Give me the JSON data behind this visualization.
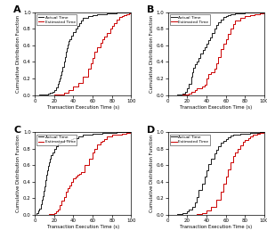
{
  "panels": [
    "A",
    "B",
    "C",
    "D"
  ],
  "xlabel": "Transaction Execution Time (s)",
  "ylabel": "Cumulative Distribution Function",
  "xlim": [
    0,
    100
  ],
  "ylim": [
    0,
    1.0
  ],
  "xticks": [
    0,
    20,
    40,
    60,
    80,
    100
  ],
  "yticks": [
    0.0,
    0.2,
    0.4,
    0.6,
    0.8,
    1.0
  ],
  "legend_labels": [
    "Actual Time",
    "Estimated Time"
  ],
  "actual_color": "#1a1a1a",
  "estimated_color": "#cc0000",
  "A_actual_x": [
    0,
    5,
    10,
    14,
    16,
    18,
    20,
    22,
    24,
    25,
    26,
    27,
    28,
    29,
    30,
    31,
    32,
    33,
    34,
    35,
    36,
    38,
    40,
    42,
    44,
    46,
    48,
    50,
    55,
    60,
    65,
    70,
    75,
    80,
    85,
    90,
    95,
    100
  ],
  "A_actual_y": [
    0,
    0.005,
    0.01,
    0.02,
    0.03,
    0.04,
    0.06,
    0.09,
    0.14,
    0.17,
    0.2,
    0.24,
    0.29,
    0.34,
    0.4,
    0.46,
    0.52,
    0.57,
    0.61,
    0.65,
    0.68,
    0.72,
    0.76,
    0.8,
    0.84,
    0.87,
    0.9,
    0.93,
    0.96,
    0.97,
    0.975,
    0.98,
    0.985,
    0.99,
    0.995,
    0.998,
    1.0,
    1.0
  ],
  "A_estimated_x": [
    0,
    20,
    25,
    30,
    35,
    40,
    45,
    50,
    55,
    58,
    60,
    62,
    65,
    68,
    70,
    72,
    75,
    78,
    80,
    82,
    85,
    88,
    90,
    92,
    95,
    98,
    100
  ],
  "A_estimated_y": [
    0,
    0.005,
    0.01,
    0.03,
    0.06,
    0.1,
    0.15,
    0.22,
    0.32,
    0.38,
    0.45,
    0.52,
    0.58,
    0.63,
    0.67,
    0.71,
    0.75,
    0.8,
    0.84,
    0.87,
    0.91,
    0.94,
    0.96,
    0.97,
    0.98,
    0.99,
    1.0
  ],
  "B_actual_x": [
    0,
    10,
    15,
    18,
    20,
    22,
    24,
    25,
    26,
    28,
    30,
    32,
    34,
    36,
    38,
    40,
    42,
    44,
    46,
    48,
    50,
    52,
    55,
    58,
    60,
    62,
    65,
    68,
    70,
    75,
    80,
    85,
    90,
    95,
    100
  ],
  "B_actual_y": [
    0,
    0.01,
    0.02,
    0.04,
    0.08,
    0.14,
    0.22,
    0.28,
    0.33,
    0.37,
    0.4,
    0.45,
    0.5,
    0.54,
    0.58,
    0.62,
    0.66,
    0.7,
    0.75,
    0.8,
    0.85,
    0.88,
    0.91,
    0.94,
    0.96,
    0.97,
    0.975,
    0.98,
    0.985,
    0.99,
    0.993,
    0.995,
    0.998,
    1.0,
    1.0
  ],
  "B_estimated_x": [
    0,
    15,
    20,
    22,
    24,
    28,
    30,
    35,
    38,
    40,
    42,
    45,
    48,
    50,
    52,
    55,
    58,
    60,
    62,
    65,
    68,
    70,
    75,
    80,
    85,
    90,
    95,
    100
  ],
  "B_estimated_y": [
    0,
    0.005,
    0.01,
    0.02,
    0.04,
    0.06,
    0.08,
    0.1,
    0.12,
    0.2,
    0.25,
    0.28,
    0.32,
    0.38,
    0.46,
    0.56,
    0.62,
    0.68,
    0.74,
    0.8,
    0.86,
    0.9,
    0.93,
    0.95,
    0.97,
    0.98,
    0.99,
    1.0
  ],
  "C_actual_x": [
    0,
    2,
    4,
    5,
    6,
    7,
    8,
    9,
    10,
    11,
    12,
    13,
    14,
    15,
    16,
    17,
    18,
    20,
    22,
    24,
    26,
    28,
    30,
    32,
    35,
    38,
    40,
    45,
    50,
    55,
    60,
    65,
    70,
    75,
    80,
    85,
    90,
    100
  ],
  "C_actual_y": [
    0,
    0.02,
    0.05,
    0.08,
    0.13,
    0.18,
    0.23,
    0.29,
    0.35,
    0.42,
    0.48,
    0.54,
    0.59,
    0.64,
    0.68,
    0.72,
    0.76,
    0.8,
    0.83,
    0.86,
    0.87,
    0.88,
    0.89,
    0.9,
    0.91,
    0.92,
    0.93,
    0.95,
    0.97,
    0.975,
    0.98,
    0.985,
    0.99,
    0.993,
    0.997,
    1.0,
    1.0,
    1.0
  ],
  "C_estimated_x": [
    0,
    10,
    15,
    20,
    22,
    24,
    26,
    28,
    30,
    32,
    34,
    36,
    38,
    40,
    42,
    44,
    46,
    48,
    52,
    56,
    60,
    62,
    65,
    68,
    70,
    72,
    75,
    80,
    85,
    90,
    95,
    100
  ],
  "C_estimated_y": [
    0,
    0.005,
    0.01,
    0.02,
    0.04,
    0.07,
    0.12,
    0.17,
    0.22,
    0.28,
    0.32,
    0.36,
    0.4,
    0.44,
    0.46,
    0.48,
    0.5,
    0.52,
    0.6,
    0.68,
    0.76,
    0.8,
    0.85,
    0.88,
    0.9,
    0.92,
    0.95,
    0.97,
    0.975,
    0.98,
    0.99,
    1.0
  ],
  "D_actual_x": [
    0,
    5,
    10,
    15,
    20,
    22,
    25,
    28,
    30,
    32,
    35,
    38,
    40,
    42,
    45,
    48,
    50,
    52,
    55,
    58,
    60,
    62,
    65,
    68,
    70,
    75,
    80,
    85,
    90,
    95,
    100
  ],
  "D_actual_y": [
    0,
    0.005,
    0.01,
    0.02,
    0.04,
    0.06,
    0.1,
    0.15,
    0.22,
    0.3,
    0.38,
    0.46,
    0.54,
    0.61,
    0.68,
    0.74,
    0.79,
    0.83,
    0.87,
    0.9,
    0.92,
    0.94,
    0.96,
    0.97,
    0.975,
    0.98,
    0.985,
    0.99,
    0.995,
    0.998,
    1.0
  ],
  "D_estimated_x": [
    0,
    25,
    30,
    35,
    40,
    45,
    50,
    55,
    58,
    60,
    62,
    65,
    68,
    70,
    72,
    75,
    78,
    80,
    83,
    85,
    88,
    90,
    93,
    95,
    98,
    100
  ],
  "D_estimated_y": [
    0,
    0.005,
    0.01,
    0.02,
    0.05,
    0.1,
    0.18,
    0.28,
    0.38,
    0.46,
    0.55,
    0.64,
    0.71,
    0.76,
    0.8,
    0.84,
    0.88,
    0.91,
    0.93,
    0.95,
    0.97,
    0.975,
    0.98,
    0.99,
    0.995,
    1.0
  ]
}
